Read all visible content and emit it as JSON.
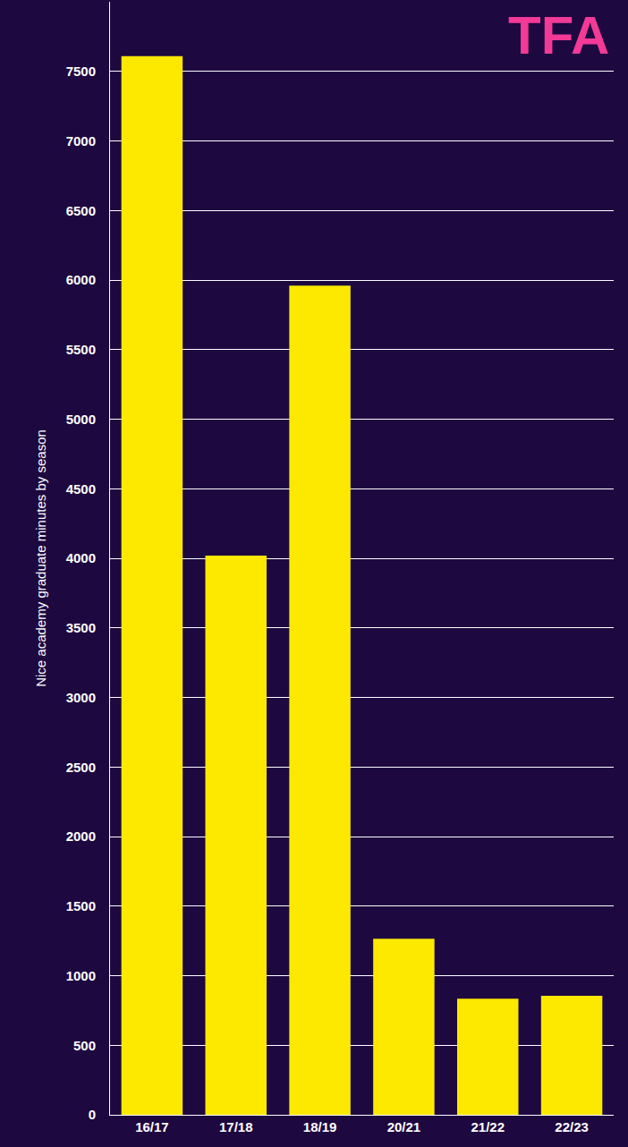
{
  "chart_data": {
    "type": "bar",
    "y_label": "Nice academy graduate minutes by season",
    "categories": [
      "16/17",
      "17/18",
      "18/19",
      "20/21",
      "21/22",
      "22/23"
    ],
    "values": [
      7610,
      4020,
      5960,
      1265,
      835,
      855
    ],
    "color": "#fde800",
    "ylim": [
      0,
      8000
    ],
    "yticks": [
      0,
      500,
      1000,
      1500,
      2000,
      2500,
      3000,
      3500,
      4000,
      4500,
      5000,
      5500,
      6000,
      6500,
      7000,
      7500
    ],
    "grid": true,
    "annotations": [
      "TFA"
    ]
  }
}
